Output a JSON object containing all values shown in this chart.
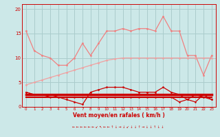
{
  "x": [
    0,
    1,
    2,
    3,
    4,
    5,
    6,
    7,
    8,
    9,
    10,
    11,
    12,
    13,
    14,
    15,
    16,
    17,
    18,
    19,
    20,
    21,
    22,
    23
  ],
  "rafales": [
    15.5,
    11.5,
    10.5,
    10.0,
    8.5,
    8.5,
    10.0,
    13.0,
    10.5,
    13.0,
    15.5,
    15.5,
    16.0,
    15.5,
    16.0,
    16.0,
    15.5,
    18.5,
    15.5,
    15.5,
    10.5,
    10.5,
    6.5,
    10.5
  ],
  "avg_trend": [
    4.5,
    5.0,
    5.5,
    6.0,
    6.5,
    7.0,
    7.5,
    8.0,
    8.5,
    9.0,
    9.5,
    9.8,
    10.0,
    10.0,
    10.0,
    10.0,
    10.0,
    10.0,
    10.0,
    10.0,
    10.0,
    10.0,
    10.0,
    10.0
  ],
  "vent_moyen": [
    3.0,
    2.5,
    2.5,
    2.5,
    2.0,
    1.5,
    1.0,
    0.5,
    3.0,
    3.5,
    4.0,
    4.0,
    4.0,
    3.5,
    3.0,
    3.0,
    3.0,
    4.0,
    3.0,
    2.5,
    1.5,
    2.5,
    2.0,
    1.5
  ],
  "line1": [
    3.0,
    2.5,
    2.5,
    2.0,
    2.0,
    2.0,
    2.0,
    2.0,
    2.0,
    2.0,
    2.0,
    2.0,
    2.0,
    2.0,
    2.0,
    2.0,
    2.0,
    2.0,
    2.0,
    1.0,
    1.5,
    1.0,
    2.5,
    1.5
  ],
  "flat1": [
    2.5,
    2.5,
    2.5,
    2.5,
    2.5,
    2.5,
    2.5,
    2.5,
    2.5,
    2.5,
    2.5,
    2.5,
    2.5,
    2.5,
    2.5,
    2.5,
    2.5,
    2.5,
    2.5,
    2.5,
    2.5,
    2.5,
    2.5,
    2.5
  ],
  "flat2": [
    2.0,
    2.0,
    2.0,
    2.0,
    2.0,
    2.0,
    2.0,
    2.0,
    2.0,
    2.0,
    2.0,
    2.0,
    2.0,
    2.0,
    2.0,
    2.0,
    2.0,
    2.0,
    2.0,
    2.0,
    2.0,
    2.0,
    2.0,
    2.0
  ],
  "bg_color": "#cce8e8",
  "grid_color": "#aacccc",
  "color_rafales": "#f08080",
  "color_avg_trend": "#f0a0a0",
  "color_vent": "#cc0000",
  "color_line1": "#cc0000",
  "color_flat1": "#cc0000",
  "color_flat2": "#cc0000",
  "xlabel": "Vent moyen/en rafales ( km/h )",
  "ylim": [
    0,
    21
  ],
  "yticks": [
    0,
    5,
    10,
    15,
    20
  ],
  "arrow_symbols": [
    "←",
    "←",
    "←",
    "←",
    "←",
    "←",
    "↙",
    "↖",
    "←",
    "←",
    "↑",
    "↓",
    "→",
    "↓",
    "↙",
    "↓",
    "↓",
    "↑",
    "→",
    "↓",
    "↓",
    "↑",
    "↓",
    "↓"
  ]
}
